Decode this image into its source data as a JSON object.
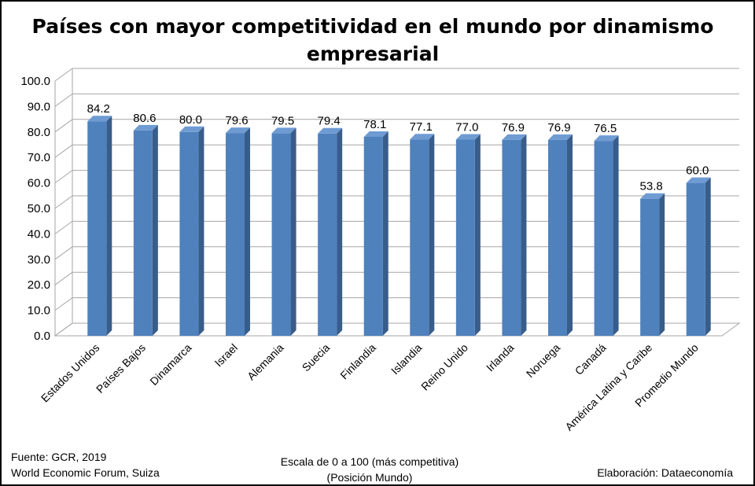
{
  "chart_data": {
    "type": "bar",
    "title": "Países con mayor competitividad  en el mundo por dinamismo empresarial",
    "title_lines": [
      "Países con mayor competitividad  en el mundo por dinamismo",
      "empresarial"
    ],
    "categories": [
      "Estados Unidos",
      "Países Bajos",
      "Dinamarca",
      "Israel",
      "Alemania",
      "Suecia",
      "Finlandia",
      "Islandia",
      "Reino Unido",
      "Irlanda",
      "Noruega",
      "Canadá",
      "América Latina y Caribe",
      "Promedio Mundo"
    ],
    "values": [
      84.2,
      80.6,
      80.0,
      79.6,
      79.5,
      79.4,
      78.1,
      77.1,
      77.0,
      76.9,
      76.9,
      76.5,
      53.8,
      60.0
    ],
    "value_labels": [
      "84.2",
      "80.6",
      "80.0",
      "79.6",
      "79.5",
      "79.4",
      "78.1",
      "77.1",
      "77.0",
      "76.9",
      "76.9",
      "76.5",
      "53.8",
      "60.0"
    ],
    "ylim": [
      0,
      100
    ],
    "yticks": [
      "0.0",
      "10.0",
      "20.0",
      "30.0",
      "40.0",
      "50.0",
      "60.0",
      "70.0",
      "80.0",
      "90.0",
      "100.0"
    ],
    "grid": true,
    "bar_color": "#4F81BD",
    "bar_side_color": "#385D8A",
    "bar_top_color": "#6F9BD3"
  },
  "footer": {
    "source_line1": "Fuente:  GCR, 2019",
    "source_line2": "World Economic Forum, Suiza",
    "scale_line1": "Escala de 0 a 100 (más competitiva)",
    "scale_line2": "(Posición Mundo)",
    "credit": "Elaboración: Dataeconomía"
  }
}
